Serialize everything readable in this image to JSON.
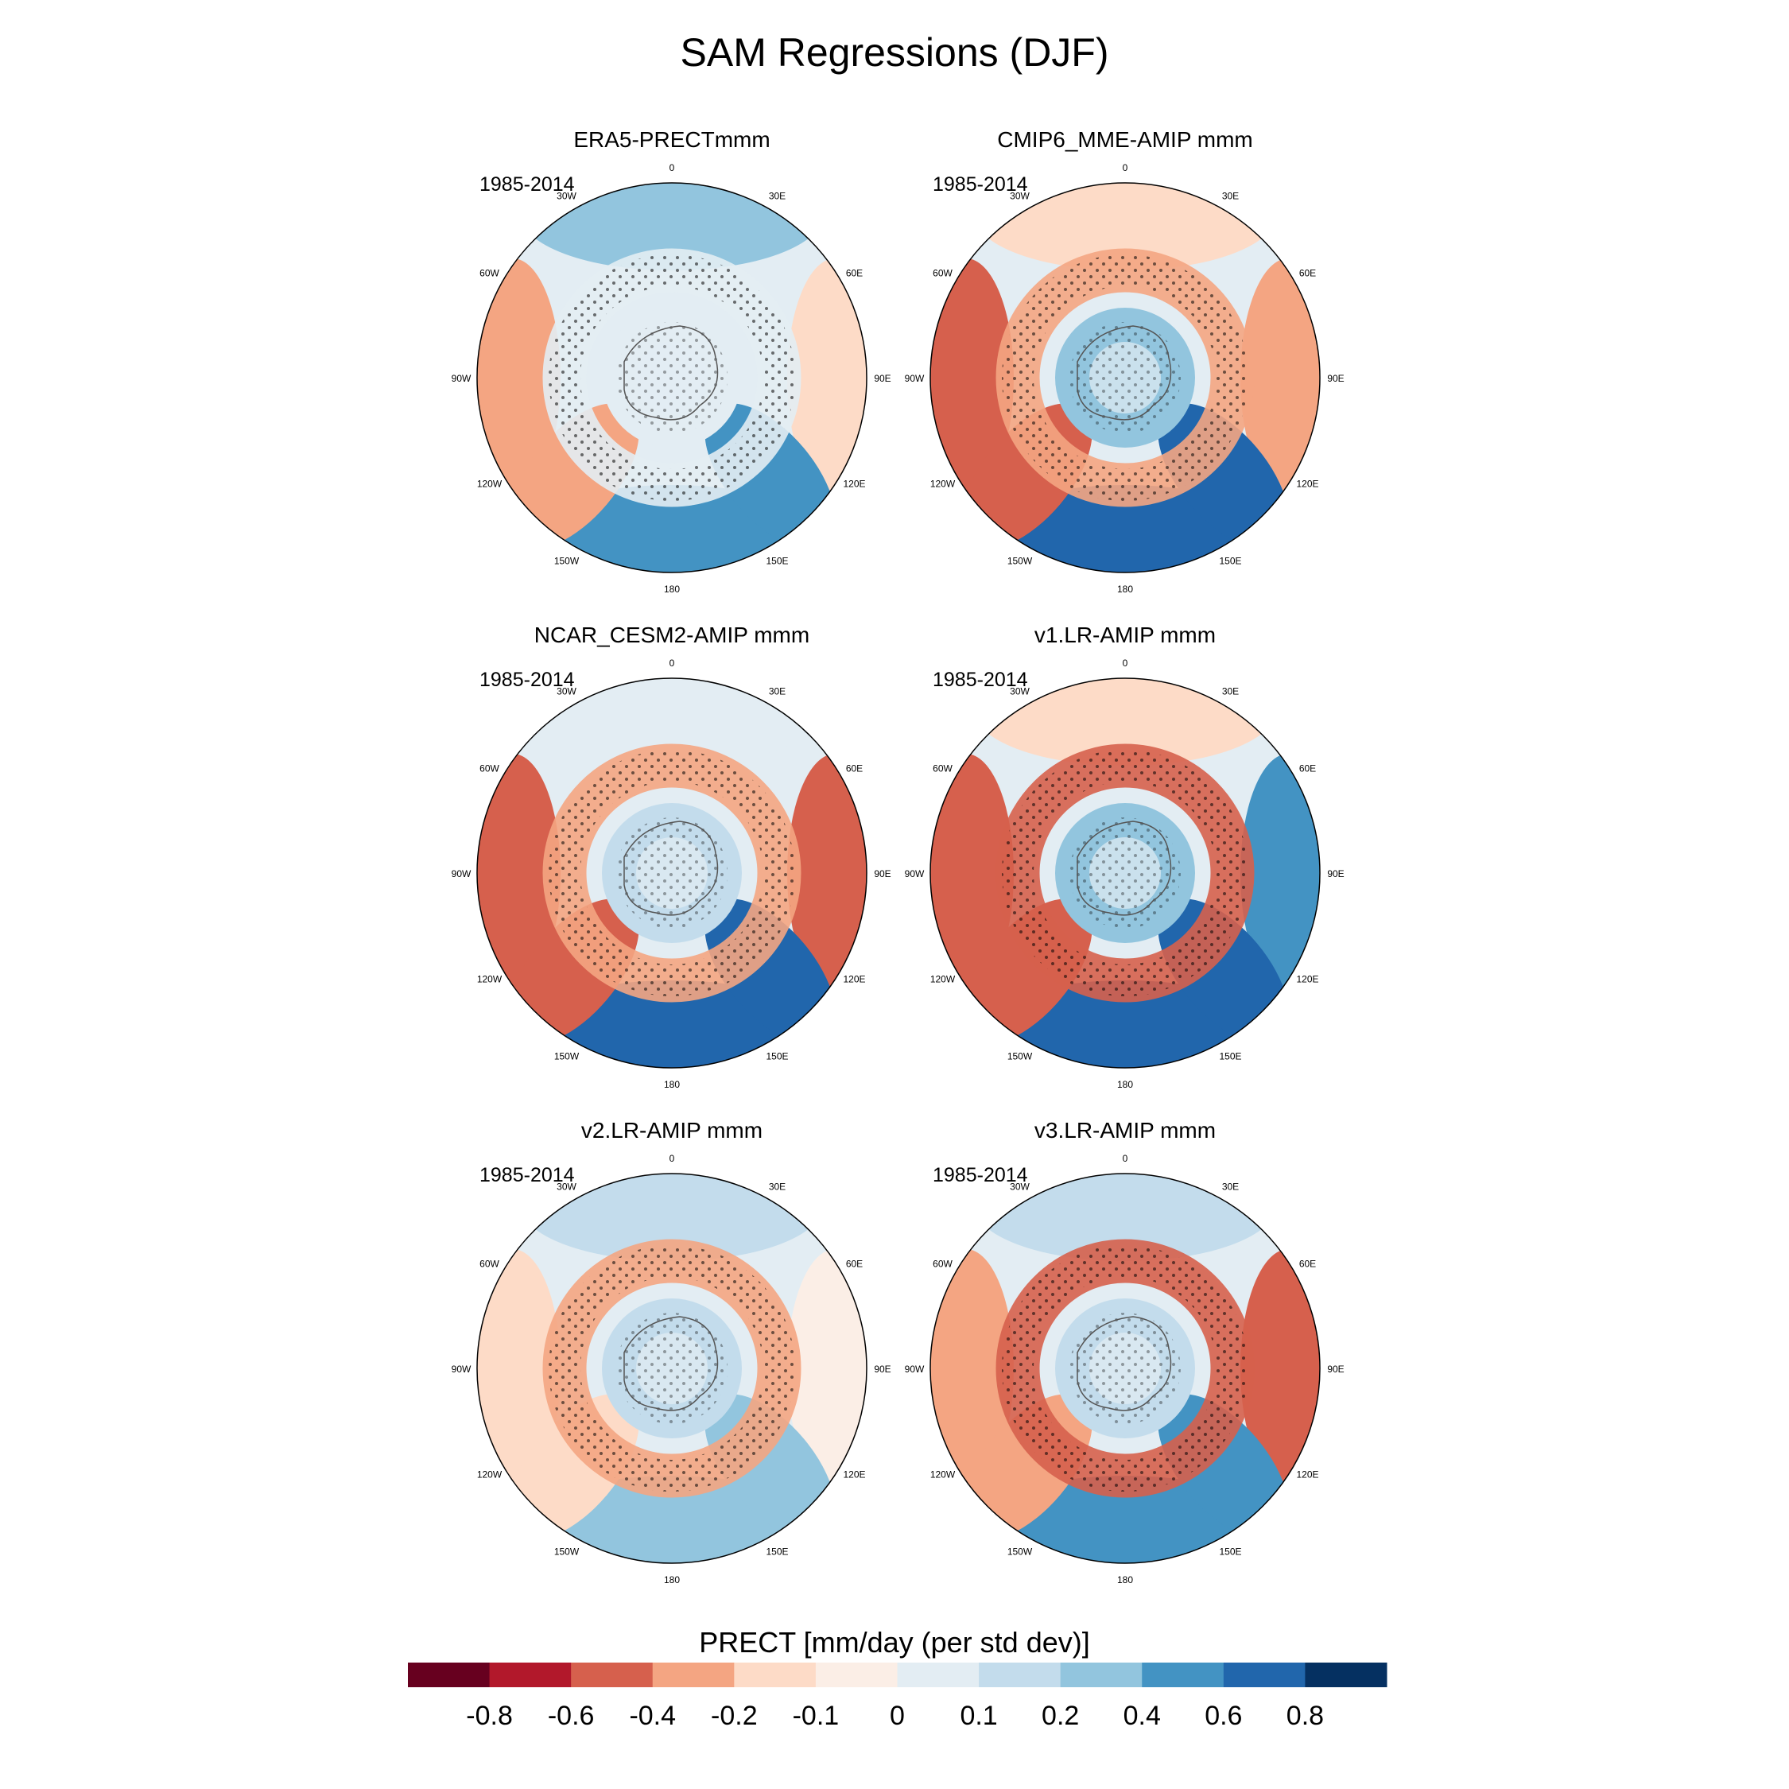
{
  "figure": {
    "title": "SAM Regressions (DJF)",
    "colorbar_label": "PRECT [mm/day (per std dev)]"
  },
  "colorbar": {
    "colors": [
      "#67001f",
      "#b2182b",
      "#d6604d",
      "#f4a582",
      "#fddbc7",
      "#fbeee6",
      "#e3edf3",
      "#c3dcec",
      "#92c5de",
      "#4393c3",
      "#2166ac",
      "#053061"
    ],
    "tick_labels": [
      "-0.8",
      "-0.6",
      "-0.4",
      "-0.2",
      "-0.1",
      "0",
      "0.1",
      "0.2",
      "0.4",
      "0.6",
      "0.8"
    ]
  },
  "longitude_labels": [
    "0",
    "30E",
    "60E",
    "90E",
    "120E",
    "150E",
    "180",
    "150W",
    "120W",
    "90W",
    "60W",
    "30W"
  ],
  "panels": [
    {
      "title": "ERA5-PRECTmmm",
      "period": "1985-2014"
    },
    {
      "title": "CMIP6_MME-AMIP  mmm",
      "period": "1985-2014"
    },
    {
      "title": "NCAR_CESM2-AMIP  mmm",
      "period": "1985-2014"
    },
    {
      "title": "v1.LR-AMIP  mmm",
      "period": "1985-2014"
    },
    {
      "title": "v2.LR-AMIP  mmm",
      "period": "1985-2014"
    },
    {
      "title": "v3.LR-AMIP  mmm",
      "period": "1985-2014"
    }
  ]
}
